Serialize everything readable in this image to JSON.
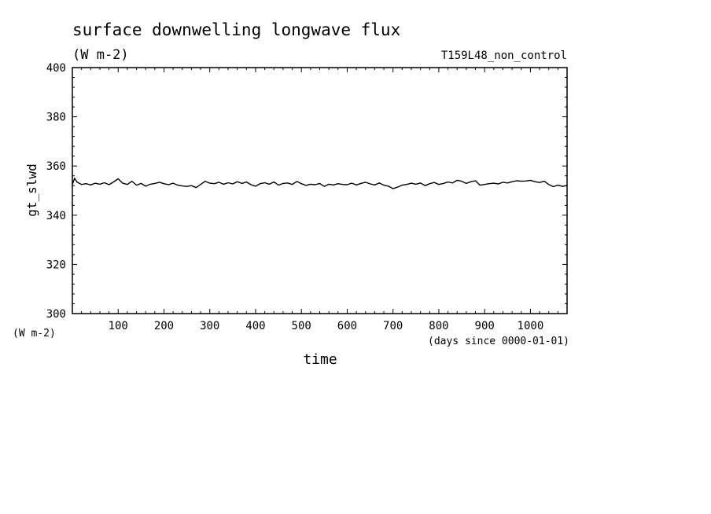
{
  "chart_data": {
    "type": "line",
    "title": "surface downwelling longwave flux",
    "title_units": "(W m-2)",
    "run_label": "T159L48_non_control",
    "ylabel": "gt_slwd",
    "y_units_label": "(W m-2)",
    "xlabel": "time",
    "x_units_label": "(days since 0000-01-01)",
    "xlim": [
      0,
      1080
    ],
    "ylim": [
      300,
      400
    ],
    "x_ticks": [
      100,
      200,
      300,
      400,
      500,
      600,
      700,
      800,
      900,
      1000
    ],
    "y_ticks": [
      300,
      320,
      340,
      360,
      380,
      400
    ],
    "grid": false,
    "line_color": "#000000",
    "series": [
      {
        "x": [
          0,
          5,
          10,
          20,
          30,
          40,
          50,
          60,
          70,
          80,
          90,
          100,
          110,
          120,
          130,
          140,
          150,
          160,
          170,
          180,
          190,
          200,
          210,
          220,
          230,
          240,
          250,
          260,
          270,
          280,
          290,
          300,
          310,
          320,
          330,
          340,
          350,
          360,
          370,
          380,
          390,
          400,
          410,
          420,
          430,
          440,
          450,
          460,
          470,
          480,
          490,
          500,
          510,
          520,
          530,
          540,
          550,
          560,
          570,
          580,
          590,
          600,
          610,
          620,
          630,
          640,
          650,
          660,
          670,
          680,
          690,
          700,
          710,
          720,
          730,
          740,
          750,
          760,
          770,
          780,
          790,
          800,
          810,
          820,
          830,
          840,
          850,
          860,
          870,
          880,
          890,
          900,
          910,
          920,
          930,
          940,
          950,
          960,
          970,
          980,
          990,
          1000,
          1010,
          1020,
          1030,
          1040,
          1050,
          1060,
          1070,
          1080
        ],
        "values": [
          352.5,
          355.0,
          353.5,
          352.5,
          352.8,
          352.3,
          353.0,
          352.6,
          353.2,
          352.4,
          353.5,
          354.8,
          353.0,
          352.5,
          353.8,
          352.2,
          352.9,
          351.8,
          352.6,
          352.9,
          353.4,
          352.8,
          352.4,
          353.0,
          352.2,
          351.9,
          351.7,
          352.0,
          351.2,
          352.5,
          353.8,
          353.0,
          352.8,
          353.4,
          352.6,
          353.2,
          352.7,
          353.6,
          352.9,
          353.5,
          352.4,
          351.8,
          352.8,
          353.2,
          352.6,
          353.5,
          352.2,
          352.9,
          353.1,
          352.5,
          353.7,
          352.8,
          352.1,
          352.6,
          352.4,
          352.9,
          351.7,
          352.6,
          352.3,
          352.8,
          352.5,
          352.4,
          353.0,
          352.3,
          352.9,
          353.4,
          352.7,
          352.3,
          353.1,
          352.2,
          351.8,
          350.8,
          351.4,
          352.2,
          352.5,
          353.0,
          352.6,
          353.1,
          352.0,
          352.8,
          353.3,
          352.5,
          352.9,
          353.5,
          353.1,
          354.2,
          353.8,
          352.9,
          353.6,
          354.0,
          352.2,
          352.5,
          352.8,
          353.0,
          352.7,
          353.4,
          353.1,
          353.6,
          354.0,
          353.8,
          353.9,
          354.2,
          353.6,
          353.3,
          353.8,
          352.5,
          351.6,
          352.2,
          351.7,
          352.1
        ]
      }
    ]
  }
}
